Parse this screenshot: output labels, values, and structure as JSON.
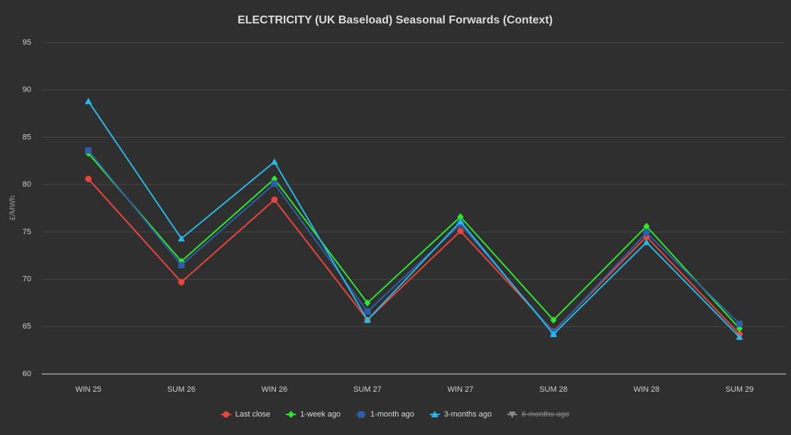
{
  "chart_data": {
    "type": "line",
    "title": "ELECTRICITY (UK Baseload) Seasonal Forwards (Context)",
    "y_label": "£/MWh",
    "categories": [
      "WIN 25",
      "SUM 26",
      "WIN 26",
      "SUM 27",
      "WIN 27",
      "SUM 28",
      "WIN 28",
      "SUM 29"
    ],
    "series": [
      {
        "name": "Last close",
        "color": "#e8453c",
        "marker": "circle",
        "values": [
          80.6,
          69.7,
          78.4,
          65.7,
          75.1,
          64.5,
          74.5,
          64.2
        ]
      },
      {
        "name": "1-week ago",
        "color": "#2ee62e",
        "marker": "diamond",
        "values": [
          83.3,
          71.9,
          80.6,
          67.5,
          76.6,
          65.7,
          75.6,
          64.8
        ]
      },
      {
        "name": "1-month ago",
        "color": "#2d5fa8",
        "marker": "square",
        "values": [
          83.6,
          71.5,
          80.1,
          66.6,
          75.8,
          64.4,
          74.9,
          65.3
        ]
      },
      {
        "name": "3-months ago",
        "color": "#28b8e8",
        "marker": "triangle",
        "values": [
          88.8,
          74.3,
          82.4,
          65.7,
          76.1,
          64.2,
          73.9,
          63.9
        ]
      },
      {
        "name": "6-months ago",
        "color": "#8a8a8a",
        "marker": "triangle-down",
        "visible": false,
        "values": [
          null,
          null,
          null,
          null,
          null,
          null,
          null,
          null
        ]
      }
    ],
    "ylim": [
      60,
      95
    ],
    "yticks": [
      60,
      65,
      70,
      75,
      80,
      85,
      90,
      95
    ],
    "grid": true,
    "legend": "bottom"
  }
}
